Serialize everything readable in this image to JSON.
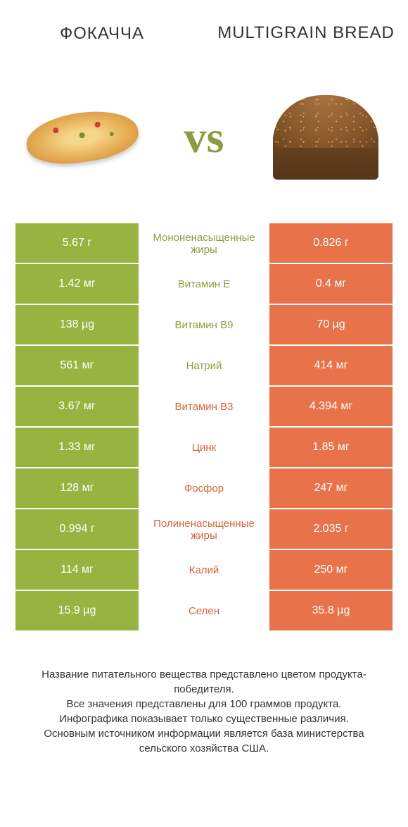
{
  "colors": {
    "green": "#97b440",
    "orange": "#e8734a",
    "green_text": "#8b9e3e",
    "orange_text": "#d8623c"
  },
  "header": {
    "left": "Фокачча",
    "right": "Multigrain bread",
    "vs": "vs"
  },
  "rows": [
    {
      "left": "5.67 г",
      "mid": "Мононенасыщенные жиры",
      "right": "0.826 г",
      "winner": "left"
    },
    {
      "left": "1.42 мг",
      "mid": "Витамин E",
      "right": "0.4 мг",
      "winner": "left"
    },
    {
      "left": "138 µg",
      "mid": "Витамин B9",
      "right": "70 µg",
      "winner": "left"
    },
    {
      "left": "561 мг",
      "mid": "Натрий",
      "right": "414 мг",
      "winner": "left"
    },
    {
      "left": "3.67 мг",
      "mid": "Витамин B3",
      "right": "4.394 мг",
      "winner": "right"
    },
    {
      "left": "1.33 мг",
      "mid": "Цинк",
      "right": "1.85 мг",
      "winner": "right"
    },
    {
      "left": "128 мг",
      "mid": "Фосфор",
      "right": "247 мг",
      "winner": "right"
    },
    {
      "left": "0.994 г",
      "mid": "Полиненасыщенные жиры",
      "right": "2.035 г",
      "winner": "right"
    },
    {
      "left": "114 мг",
      "mid": "Калий",
      "right": "250 мг",
      "winner": "right"
    },
    {
      "left": "15.9 µg",
      "mid": "Селен",
      "right": "35.8 µg",
      "winner": "right"
    }
  ],
  "footer": {
    "l1": "Название питательного вещества представлено цветом продукта-победителя.",
    "l2": "Все значения представлены для 100 граммов продукта.",
    "l3": "Инфографика показывает только существенные различия.",
    "l4": "Основным источником информации является база министерства сельского хозяйства США."
  }
}
